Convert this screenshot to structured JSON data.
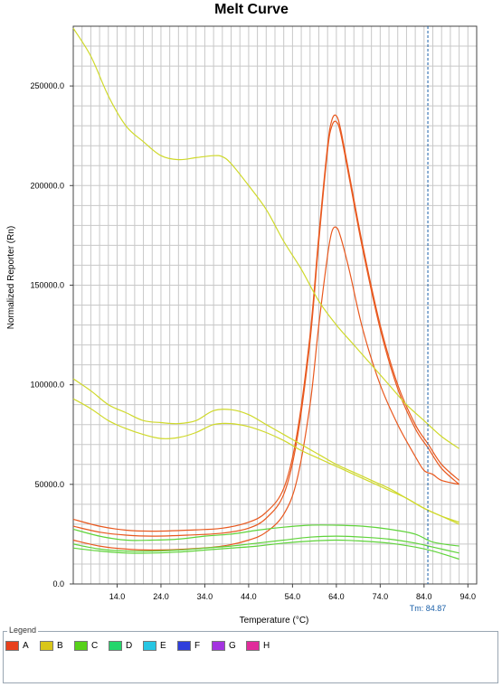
{
  "chart_data": {
    "type": "line",
    "title": "Melt Curve",
    "xlabel": "Temperature (°C)",
    "ylabel": "Normalized Reporter (Rn)",
    "xlim": [
      4.0,
      96.0
    ],
    "ylim": [
      0,
      280000
    ],
    "grid": true,
    "x_ticks": [
      "14.0",
      "24.0",
      "34.0",
      "44.0",
      "54.0",
      "64.0",
      "74.0",
      "84.0",
      "94.0"
    ],
    "y_ticks": [
      "0.0",
      "50000.0",
      "100000.0",
      "150000.0",
      "200000.0",
      "250000.0"
    ],
    "tm_marker": {
      "x": 84.87,
      "label": "Tm: 84.87"
    },
    "legend_title": "Legend",
    "legend": [
      {
        "name": "A",
        "color": "#e8401c"
      },
      {
        "name": "B",
        "color": "#d9c61a"
      },
      {
        "name": "C",
        "color": "#57d11a"
      },
      {
        "name": "D",
        "color": "#24d66c"
      },
      {
        "name": "E",
        "color": "#27c6e3"
      },
      {
        "name": "F",
        "color": "#2f3fdc"
      },
      {
        "name": "G",
        "color": "#a433e0"
      },
      {
        "name": "H",
        "color": "#e02c9b"
      }
    ],
    "series": [
      {
        "group": "A",
        "color": "#e8581e",
        "points": [
          [
            4,
            32500
          ],
          [
            10,
            29000
          ],
          [
            16,
            27000
          ],
          [
            22,
            26500
          ],
          [
            30,
            27000
          ],
          [
            38,
            28000
          ],
          [
            44,
            31000
          ],
          [
            48,
            36000
          ],
          [
            52,
            48000
          ],
          [
            55,
            75000
          ],
          [
            58,
            125000
          ],
          [
            60,
            175000
          ],
          [
            62,
            220000
          ],
          [
            63,
            233000
          ],
          [
            64,
            235000
          ],
          [
            65,
            228000
          ],
          [
            67,
            205000
          ],
          [
            70,
            170000
          ],
          [
            74,
            130000
          ],
          [
            78,
            100000
          ],
          [
            82,
            80000
          ],
          [
            85,
            70000
          ],
          [
            88,
            60000
          ],
          [
            92,
            52000
          ]
        ]
      },
      {
        "group": "A",
        "color": "#e8581e",
        "points": [
          [
            4,
            29000
          ],
          [
            10,
            26000
          ],
          [
            16,
            24500
          ],
          [
            22,
            24000
          ],
          [
            30,
            24500
          ],
          [
            38,
            25500
          ],
          [
            44,
            28000
          ],
          [
            48,
            33000
          ],
          [
            52,
            45000
          ],
          [
            55,
            72000
          ],
          [
            58,
            122000
          ],
          [
            60,
            172000
          ],
          [
            62,
            218000
          ],
          [
            63,
            230000
          ],
          [
            64,
            232000
          ],
          [
            65,
            226000
          ],
          [
            67,
            203000
          ],
          [
            70,
            168000
          ],
          [
            74,
            128000
          ],
          [
            78,
            98000
          ],
          [
            82,
            78000
          ],
          [
            85,
            68000
          ],
          [
            88,
            58000
          ],
          [
            92,
            50000
          ]
        ]
      },
      {
        "group": "A",
        "color": "#e8581e",
        "points": [
          [
            4,
            22000
          ],
          [
            10,
            19000
          ],
          [
            16,
            17500
          ],
          [
            22,
            17000
          ],
          [
            30,
            17500
          ],
          [
            38,
            19000
          ],
          [
            44,
            22000
          ],
          [
            48,
            26000
          ],
          [
            52,
            35000
          ],
          [
            55,
            52000
          ],
          [
            58,
            90000
          ],
          [
            60,
            130000
          ],
          [
            62,
            165000
          ],
          [
            63,
            177000
          ],
          [
            64,
            179000
          ],
          [
            65,
            174000
          ],
          [
            67,
            157000
          ],
          [
            70,
            128000
          ],
          [
            74,
            100000
          ],
          [
            78,
            80000
          ],
          [
            82,
            64000
          ],
          [
            84,
            57000
          ],
          [
            86,
            55000
          ],
          [
            88,
            52000
          ],
          [
            92,
            50000
          ]
        ]
      },
      {
        "group": "B",
        "color": "#cfd92a",
        "points": [
          [
            4,
            279000
          ],
          [
            8,
            265000
          ],
          [
            12,
            245000
          ],
          [
            16,
            230000
          ],
          [
            20,
            222000
          ],
          [
            24,
            215000
          ],
          [
            28,
            213000
          ],
          [
            32,
            214000
          ],
          [
            36,
            215000
          ],
          [
            38,
            214500
          ],
          [
            40,
            211000
          ],
          [
            44,
            200000
          ],
          [
            48,
            188000
          ],
          [
            52,
            172000
          ],
          [
            56,
            158000
          ],
          [
            60,
            142000
          ],
          [
            64,
            130000
          ],
          [
            68,
            120000
          ],
          [
            72,
            110000
          ],
          [
            76,
            100000
          ],
          [
            80,
            90000
          ],
          [
            84,
            82000
          ],
          [
            88,
            74000
          ],
          [
            92,
            68000
          ]
        ]
      },
      {
        "group": "B",
        "color": "#cfd92a",
        "points": [
          [
            4,
            103000
          ],
          [
            8,
            97000
          ],
          [
            12,
            90000
          ],
          [
            16,
            86000
          ],
          [
            20,
            82000
          ],
          [
            24,
            81000
          ],
          [
            28,
            80500
          ],
          [
            32,
            82000
          ],
          [
            36,
            87000
          ],
          [
            40,
            87500
          ],
          [
            44,
            85000
          ],
          [
            48,
            80000
          ],
          [
            52,
            75000
          ],
          [
            56,
            70000
          ],
          [
            60,
            65000
          ],
          [
            64,
            60000
          ],
          [
            68,
            56000
          ],
          [
            72,
            52000
          ],
          [
            76,
            48000
          ],
          [
            80,
            43000
          ],
          [
            84,
            38000
          ],
          [
            88,
            34000
          ],
          [
            92,
            31000
          ]
        ]
      },
      {
        "group": "B",
        "color": "#cfd92a",
        "points": [
          [
            4,
            93000
          ],
          [
            8,
            88000
          ],
          [
            12,
            82000
          ],
          [
            16,
            78000
          ],
          [
            20,
            75000
          ],
          [
            24,
            73000
          ],
          [
            28,
            73500
          ],
          [
            32,
            76000
          ],
          [
            36,
            80000
          ],
          [
            40,
            80500
          ],
          [
            44,
            79000
          ],
          [
            48,
            76000
          ],
          [
            52,
            72000
          ],
          [
            56,
            67000
          ],
          [
            60,
            63000
          ],
          [
            64,
            59000
          ],
          [
            68,
            55000
          ],
          [
            72,
            51000
          ],
          [
            76,
            47000
          ],
          [
            80,
            43000
          ],
          [
            84,
            38000
          ],
          [
            88,
            34000
          ],
          [
            92,
            30000
          ]
        ]
      },
      {
        "group": "C",
        "color": "#5fd43a",
        "points": [
          [
            4,
            27500
          ],
          [
            10,
            24000
          ],
          [
            16,
            22000
          ],
          [
            22,
            22000
          ],
          [
            28,
            22500
          ],
          [
            34,
            24000
          ],
          [
            40,
            25000
          ],
          [
            46,
            27000
          ],
          [
            52,
            28500
          ],
          [
            58,
            29500
          ],
          [
            64,
            29500
          ],
          [
            70,
            29000
          ],
          [
            76,
            27500
          ],
          [
            82,
            25000
          ],
          [
            86,
            21000
          ],
          [
            92,
            19000
          ]
        ]
      },
      {
        "group": "C",
        "color": "#5fd43a",
        "points": [
          [
            4,
            20000
          ],
          [
            10,
            17500
          ],
          [
            16,
            16500
          ],
          [
            22,
            16500
          ],
          [
            28,
            17000
          ],
          [
            34,
            18000
          ],
          [
            40,
            19000
          ],
          [
            46,
            20500
          ],
          [
            52,
            22000
          ],
          [
            58,
            23500
          ],
          [
            64,
            24000
          ],
          [
            70,
            23500
          ],
          [
            76,
            22500
          ],
          [
            82,
            20500
          ],
          [
            86,
            18500
          ],
          [
            92,
            15500
          ]
        ]
      },
      {
        "group": "C",
        "color": "#5fd43a",
        "points": [
          [
            4,
            18000
          ],
          [
            10,
            16500
          ],
          [
            16,
            15500
          ],
          [
            22,
            15500
          ],
          [
            28,
            16000
          ],
          [
            34,
            17000
          ],
          [
            40,
            18000
          ],
          [
            46,
            19000
          ],
          [
            52,
            20500
          ],
          [
            58,
            21500
          ],
          [
            64,
            22000
          ],
          [
            70,
            21500
          ],
          [
            76,
            20500
          ],
          [
            82,
            18500
          ],
          [
            86,
            16500
          ],
          [
            92,
            12500
          ]
        ]
      }
    ]
  }
}
